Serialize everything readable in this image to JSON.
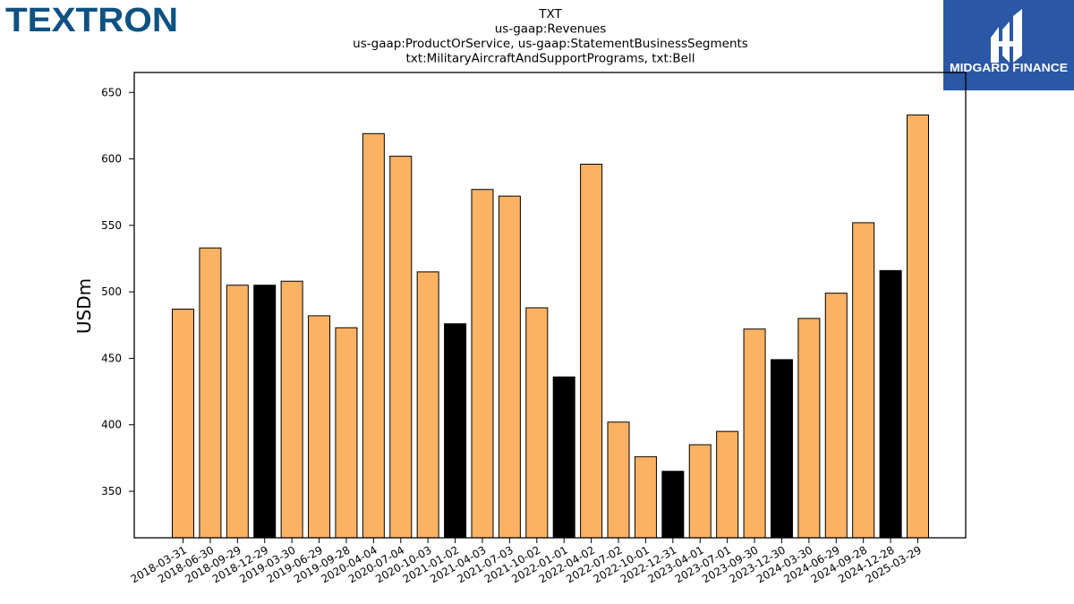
{
  "logos": {
    "left_text": "TEXTRON",
    "right_text": "MIDGARD FINANCE",
    "left_color": "#0d5282",
    "right_bg": "#2a57a6"
  },
  "chart_data": {
    "type": "bar",
    "title_lines": [
      "TXT",
      "us-gaap:Revenues",
      "us-gaap:ProductOrService, us-gaap:StatementBusinessSegments",
      "txt:MilitaryAircraftAndSupportPrograms, txt:Bell"
    ],
    "ylabel": "USDm",
    "xlabel": "",
    "ylim": [
      315,
      665
    ],
    "yticks": [
      350,
      400,
      450,
      500,
      550,
      600,
      650
    ],
    "categories": [
      "2018-03-31",
      "2018-06-30",
      "2018-09-29",
      "2018-12-29",
      "2019-03-30",
      "2019-06-29",
      "2019-09-28",
      "2020-04-04",
      "2020-07-04",
      "2020-10-03",
      "2021-01-02",
      "2021-04-03",
      "2021-07-03",
      "2021-10-02",
      "2022-01-01",
      "2022-04-02",
      "2022-07-02",
      "2022-10-01",
      "2022-12-31",
      "2023-04-01",
      "2023-07-01",
      "2023-09-30",
      "2023-12-30",
      "2024-03-30",
      "2024-06-29",
      "2024-09-28",
      "2024-12-28",
      "2025-03-29"
    ],
    "values": [
      487,
      533,
      505,
      505,
      508,
      482,
      473,
      619,
      602,
      515,
      476,
      577,
      572,
      488,
      436,
      596,
      402,
      376,
      365,
      385,
      395,
      472,
      449,
      480,
      499,
      552,
      516,
      633
    ],
    "bar_colors": [
      "orange",
      "orange",
      "orange",
      "black",
      "orange",
      "orange",
      "orange",
      "orange",
      "orange",
      "orange",
      "black",
      "orange",
      "orange",
      "orange",
      "black",
      "orange",
      "orange",
      "orange",
      "black",
      "orange",
      "orange",
      "orange",
      "black",
      "orange",
      "orange",
      "orange",
      "black",
      "orange"
    ],
    "colors": {
      "orange": "#fbb262",
      "black": "#000000"
    },
    "grid": false,
    "legend": "none"
  }
}
